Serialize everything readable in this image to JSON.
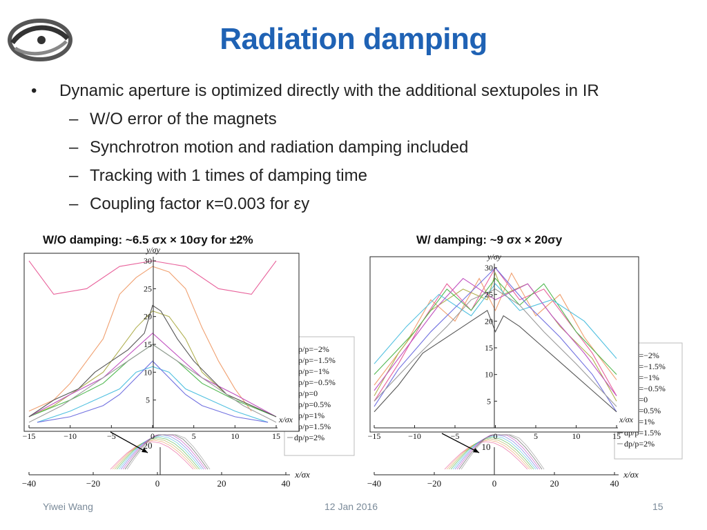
{
  "slide": {
    "title": "Radiation damping",
    "bullet": "Dynamic aperture is optimized directly with the additional sextupoles in IR",
    "subbullets": [
      "W/O error of the magnets",
      "Synchrotron motion and radiation damping included",
      "Tracking with 1 times of damping time",
      "Coupling factor κ=0.003 for εy"
    ],
    "caption_left": "W/O damping: ~6.5 σx × 10σy for ±2%",
    "caption_right": "W/ damping: ~9 σx × 20σy",
    "footer_author": "Yiwei Wang",
    "footer_date": "12 Jan 2016",
    "footer_page": "15"
  },
  "colors": {
    "title": "#1f62b4",
    "series": [
      "#e8609a",
      "#f0a070",
      "#b0b050",
      "#50b850",
      "#50c0e0",
      "#7070e0",
      "#c050c0",
      "#555555",
      "#999999"
    ]
  },
  "chart_data": [
    {
      "type": "line",
      "panel": "left-main",
      "xlabel": "x/σx",
      "ylabel": "y/σy",
      "xlim": [
        -15,
        15
      ],
      "ylim": [
        0,
        30
      ],
      "xticks": [
        -15,
        -10,
        -5,
        0,
        5,
        10,
        15
      ],
      "yticks": [
        5,
        10,
        15,
        20,
        25,
        30
      ],
      "series": [
        {
          "name": "dp/p=−2%",
          "x": [
            -15,
            -12,
            -8,
            -4,
            0,
            4,
            8,
            12,
            15
          ],
          "y": [
            30,
            24,
            25,
            29,
            30,
            29,
            25,
            24,
            30
          ]
        },
        {
          "name": "dp/p=−1.5%",
          "x": [
            -15,
            -12,
            -10,
            -8,
            -6,
            -4,
            -2,
            0,
            2,
            4,
            6,
            8,
            10,
            12
          ],
          "y": [
            3,
            5,
            8,
            12,
            16,
            24,
            27,
            29,
            28,
            25,
            18,
            12,
            7,
            3
          ]
        },
        {
          "name": "dp/p=−1%",
          "x": [
            -15,
            -12,
            -9,
            -6,
            -4,
            -2,
            0,
            2,
            4,
            6,
            9,
            12,
            15
          ],
          "y": [
            2,
            4,
            7,
            10,
            14,
            18,
            21,
            20,
            16,
            10,
            6,
            4,
            2
          ]
        },
        {
          "name": "dp/p=−0.5%",
          "x": [
            -15,
            -10,
            -6,
            -3,
            0,
            3,
            6,
            10,
            15
          ],
          "y": [
            2,
            5,
            8,
            12,
            15,
            12,
            8,
            5,
            2
          ]
        },
        {
          "name": "dp/p=0",
          "x": [
            -14,
            -10,
            -7,
            -4,
            -2,
            0,
            2,
            4,
            7,
            10,
            14
          ],
          "y": [
            1,
            3,
            5,
            7,
            10,
            11,
            10,
            7,
            5,
            3,
            1
          ]
        },
        {
          "name": "dp/p=0.5%",
          "x": [
            -14,
            -10,
            -6,
            -4,
            -2,
            0,
            2,
            4,
            6,
            10,
            14
          ],
          "y": [
            1,
            2,
            4,
            6,
            9,
            12,
            9,
            6,
            4,
            2,
            1
          ]
        },
        {
          "name": "dp/p=1%",
          "x": [
            -15,
            -10,
            -6,
            -3,
            0,
            3,
            6,
            10,
            15
          ],
          "y": [
            2,
            6,
            9,
            13,
            17,
            13,
            9,
            6,
            2
          ]
        },
        {
          "name": "dp/p=1.5%",
          "x": [
            -15,
            -12,
            -9,
            -7,
            -5,
            -3,
            -1,
            0,
            1,
            3,
            5,
            7,
            9,
            12,
            15
          ],
          "y": [
            2,
            5,
            7,
            10,
            12,
            14,
            17,
            22,
            21,
            16,
            12,
            9,
            6,
            4,
            2
          ]
        },
        {
          "name": "dp/p=2%",
          "x": [
            -15,
            -11,
            -7,
            -4,
            -1,
            0,
            1,
            4,
            7,
            11,
            15
          ],
          "y": [
            1,
            4,
            8,
            11,
            14,
            15,
            14,
            11,
            8,
            4,
            1
          ]
        }
      ]
    },
    {
      "type": "line",
      "panel": "left-background",
      "xlabel": "x/σx",
      "xlim": [
        -40,
        40
      ],
      "xticks": [
        -40,
        -20,
        0,
        20,
        40
      ],
      "ytick_label": "20",
      "series": []
    },
    {
      "type": "line",
      "panel": "right-main",
      "xlabel": "x/σx",
      "ylabel": "y/σy",
      "xlim": [
        -15,
        15
      ],
      "ylim": [
        0,
        30
      ],
      "xticks": [
        -15,
        -10,
        -5,
        0,
        5,
        10,
        15
      ],
      "yticks": [
        5,
        10,
        15,
        20,
        25,
        30
      ],
      "series": [
        {
          "name": "dp/p=−2%",
          "x": [
            -15,
            -12,
            -9,
            -6,
            -3,
            0,
            3,
            6,
            9,
            12,
            15
          ],
          "y": [
            5,
            12,
            20,
            27,
            22,
            30,
            24,
            26,
            20,
            14,
            6
          ]
        },
        {
          "name": "dp/p=−1.5%",
          "x": [
            -15,
            -11,
            -8,
            -5,
            -2,
            0,
            2,
            5,
            8,
            11,
            15
          ],
          "y": [
            8,
            16,
            24,
            20,
            28,
            22,
            29,
            21,
            25,
            17,
            9
          ]
        },
        {
          "name": "dp/p=−1%",
          "x": [
            -15,
            -12,
            -8,
            -4,
            -1,
            0,
            1,
            4,
            8,
            12,
            15
          ],
          "y": [
            6,
            14,
            22,
            26,
            24,
            29,
            25,
            27,
            19,
            13,
            5
          ]
        },
        {
          "name": "dp/p=−0.5%",
          "x": [
            -15,
            -10,
            -6,
            -3,
            0,
            3,
            6,
            10,
            15
          ],
          "y": [
            10,
            18,
            26,
            22,
            28,
            23,
            27,
            18,
            10
          ]
        },
        {
          "name": "dp/p=0",
          "x": [
            -15,
            -11,
            -7,
            -3,
            0,
            3,
            7,
            11,
            15
          ],
          "y": [
            12,
            19,
            25,
            21,
            27,
            22,
            24,
            20,
            13
          ]
        },
        {
          "name": "dp/p=0.5%",
          "x": [
            -15,
            -12,
            -8,
            -4,
            0,
            4,
            8,
            12,
            15
          ],
          "y": [
            4,
            11,
            18,
            24,
            30,
            23,
            17,
            10,
            3
          ]
        },
        {
          "name": "dp/p=1%",
          "x": [
            -15,
            -11,
            -7,
            -4,
            0,
            4,
            7,
            11,
            15
          ],
          "y": [
            7,
            15,
            23,
            28,
            24,
            27,
            21,
            14,
            6
          ]
        },
        {
          "name": "dp/p=1.5%",
          "x": [
            -15,
            -12,
            -9,
            -6,
            -3,
            -1,
            0,
            1,
            3,
            6,
            9,
            12,
            15
          ],
          "y": [
            3,
            8,
            14,
            17,
            20,
            22,
            18,
            21,
            19,
            15,
            11,
            7,
            3
          ]
        },
        {
          "name": "dp/p=2%",
          "x": [
            -15,
            -10,
            -6,
            -3,
            0,
            3,
            6,
            10,
            15
          ],
          "y": [
            5,
            13,
            19,
            24,
            26,
            23,
            18,
            12,
            4
          ]
        }
      ]
    },
    {
      "type": "line",
      "panel": "right-background",
      "xlabel": "x/σx",
      "xlim": [
        -40,
        40
      ],
      "xticks": [
        -40,
        -20,
        0,
        20,
        40
      ],
      "ytick_label": "10",
      "series": []
    }
  ]
}
